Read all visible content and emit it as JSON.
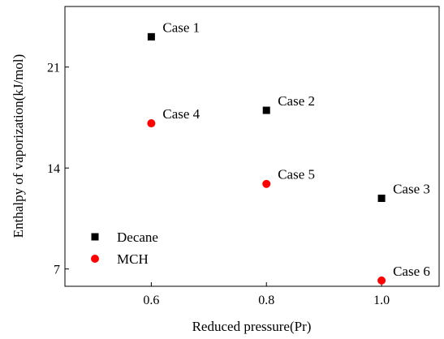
{
  "chart_data": {
    "type": "scatter",
    "title": "",
    "xlabel": "Reduced pressure(Pr)",
    "ylabel": "Enthalpy of vaporization(kJ/mol)",
    "xlim": [
      0.45,
      1.1
    ],
    "ylim": [
      5.8,
      25.2
    ],
    "xticks": [
      0.6,
      0.8,
      1.0
    ],
    "xtick_labels": [
      "0.6",
      "0.8",
      "1.0"
    ],
    "yticks": [
      7,
      14,
      21
    ],
    "ytick_labels": [
      "7",
      "14",
      "21"
    ],
    "grid": false,
    "legend_position": "bottom-left",
    "series": [
      {
        "name": "Decane",
        "marker": "square",
        "color": "#000000",
        "points": [
          {
            "x": 0.6,
            "y": 23.1,
            "label": "Case 1"
          },
          {
            "x": 0.8,
            "y": 18.0,
            "label": "Case 2"
          },
          {
            "x": 1.0,
            "y": 11.9,
            "label": "Case 3"
          }
        ]
      },
      {
        "name": "MCH",
        "marker": "circle",
        "color": "#ff0000",
        "points": [
          {
            "x": 0.6,
            "y": 17.1,
            "label": "Case 4"
          },
          {
            "x": 0.8,
            "y": 12.9,
            "label": "Case 5"
          },
          {
            "x": 1.0,
            "y": 6.2,
            "label": "Case 6"
          }
        ]
      }
    ]
  }
}
